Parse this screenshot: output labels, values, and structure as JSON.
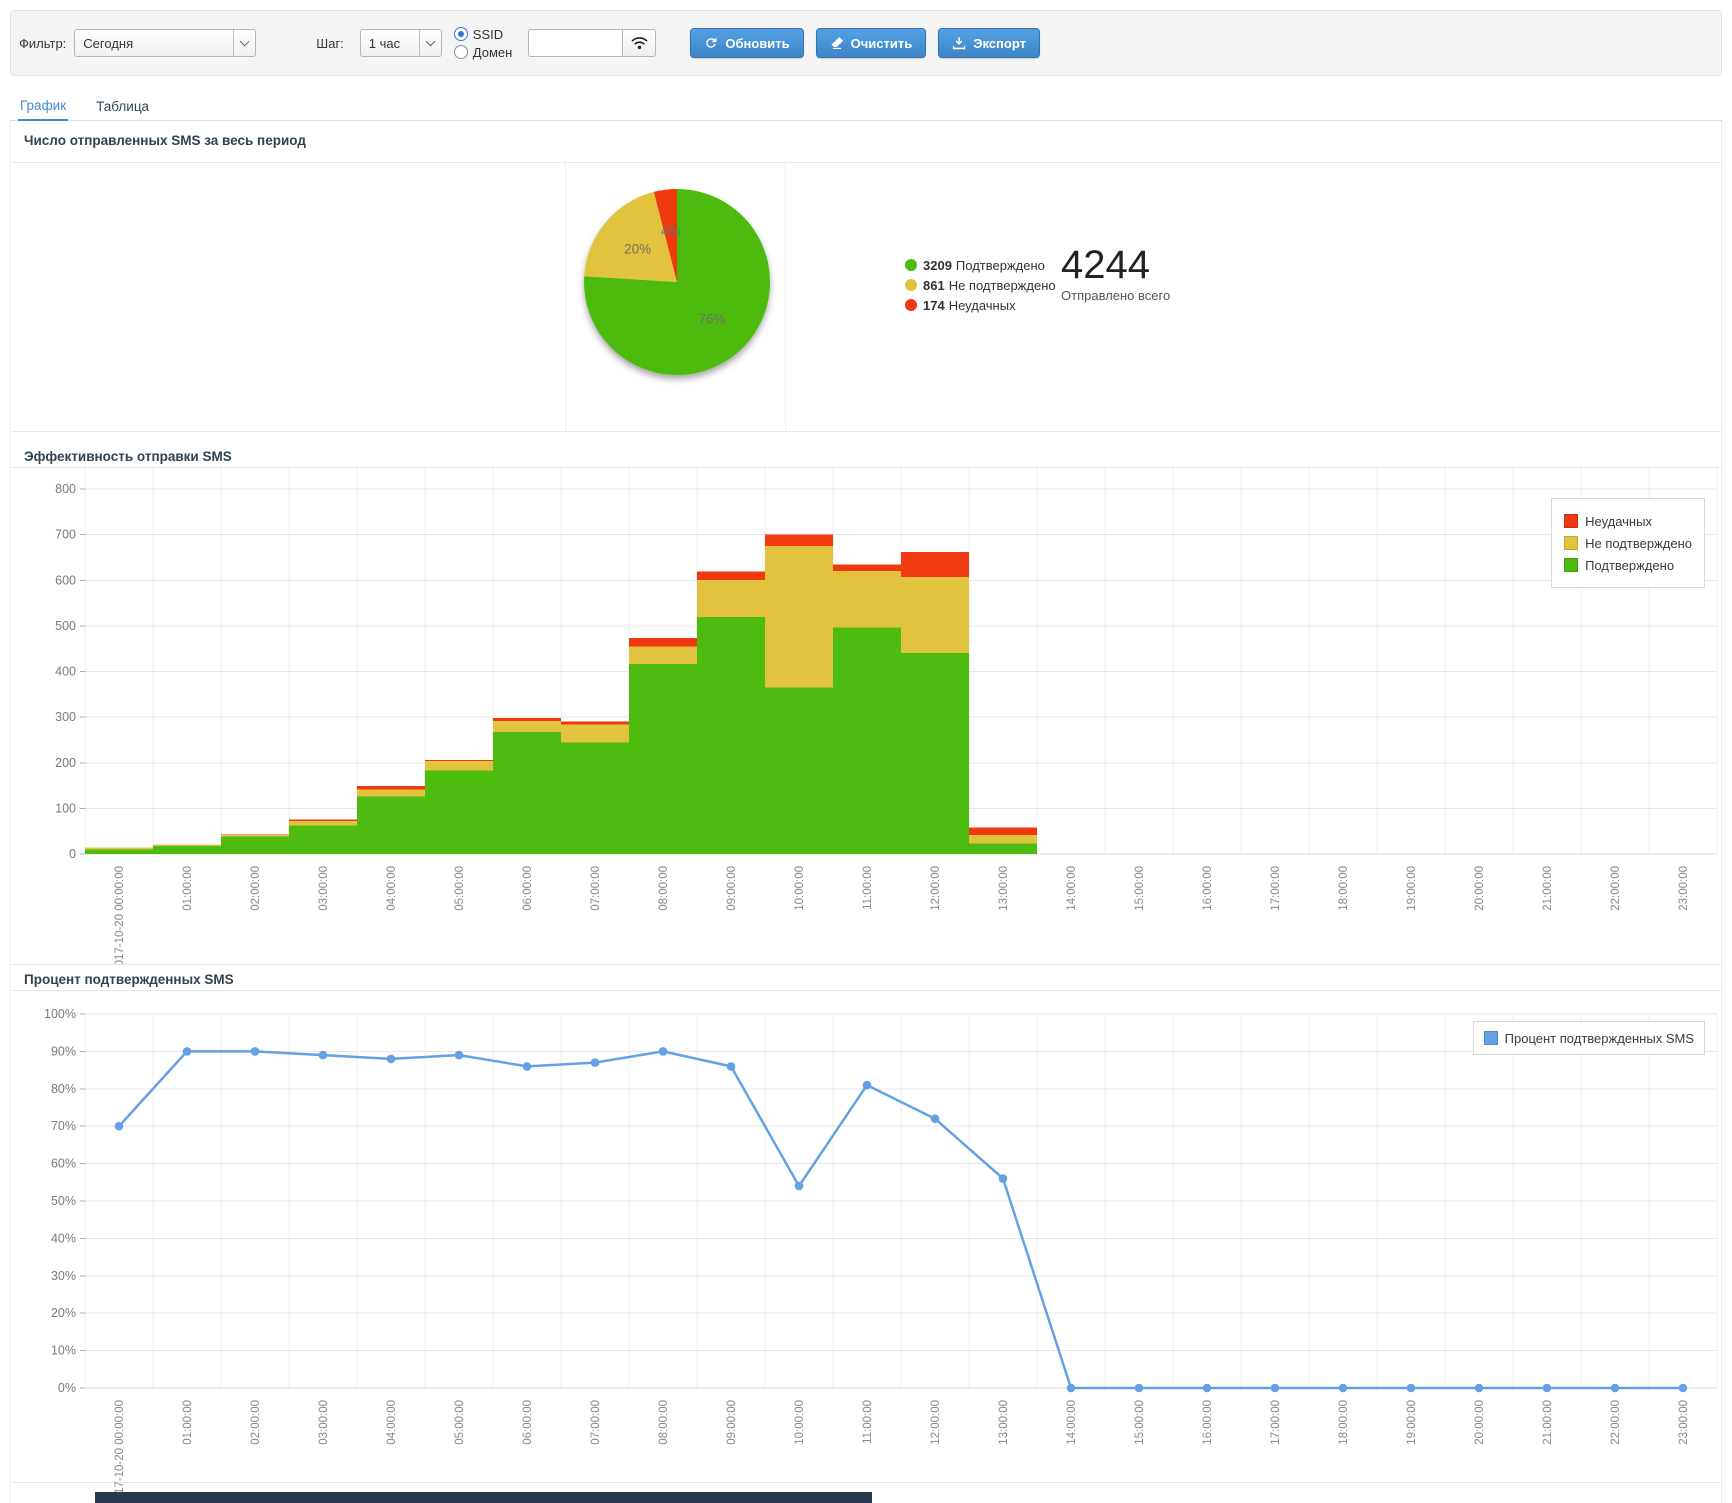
{
  "toolbar": {
    "filter_label": "Фильтр:",
    "filter_value": "Сегодня",
    "step_label": "Шаг:",
    "step_value": "1 час",
    "radio_ssid": "SSID",
    "radio_domain": "Домен",
    "search_value": "",
    "refresh_label": "Обновить",
    "clear_label": "Очистить",
    "export_label": "Экспорт"
  },
  "tabs": [
    {
      "label": "График",
      "active": true
    },
    {
      "label": "Таблица",
      "active": false
    }
  ],
  "sections": {
    "pie_title": "Число отправленных SMS за весь период",
    "bar_title": "Эффективность отправки SMS",
    "line_title": "Процент подтвержденных SMS"
  },
  "pie_summary": {
    "total_value": "4244",
    "total_label": "Отправлено всего",
    "legend": [
      {
        "value": "3209",
        "label": "Подтверждено",
        "color": "#4dbb10"
      },
      {
        "value": "861",
        "label": "Не подтверждено",
        "color": "#e2c33d"
      },
      {
        "value": "174",
        "label": "Неудачных",
        "color": "#ee3911"
      }
    ]
  },
  "bar_legend": [
    {
      "label": "Неудачных",
      "color": "#ee3911"
    },
    {
      "label": "Не подтверждено",
      "color": "#e2c33d"
    },
    {
      "label": "Подтверждено",
      "color": "#4dbb10"
    }
  ],
  "line_legend": {
    "label": "Процент подтвержденных SMS",
    "color": "#64a1e4"
  },
  "ui_colors": {
    "accent": "#428bca",
    "button_border": "#3474ad",
    "grid": "#e7e7e7",
    "axis_text": "#7a7a7a"
  },
  "chart_data": [
    {
      "type": "pie",
      "title": "Число отправленных SMS за весь период",
      "slices": [
        {
          "label": "Подтверждено",
          "value": 3209,
          "pct": 76,
          "color": "#4dbb10"
        },
        {
          "label": "Не подтверждено",
          "value": 861,
          "pct": 20,
          "color": "#e2c33d"
        },
        {
          "label": "Неудачных",
          "value": 174,
          "pct": 4,
          "color": "#ee3911"
        }
      ],
      "total": 4244,
      "slice_labels": [
        "76%",
        "20%",
        "4%"
      ]
    },
    {
      "type": "bar",
      "stacked": true,
      "title": "Эффективность отправки SMS",
      "categories": [
        "2017-10-20 00:00:00",
        "01:00:00",
        "02:00:00",
        "03:00:00",
        "04:00:00",
        "05:00:00",
        "06:00:00",
        "07:00:00",
        "08:00:00",
        "09:00:00",
        "10:00:00",
        "11:00:00",
        "12:00:00",
        "13:00:00",
        "14:00:00",
        "15:00:00",
        "16:00:00",
        "17:00:00",
        "18:00:00",
        "19:00:00",
        "20:00:00",
        "21:00:00",
        "22:00:00",
        "23:00:00"
      ],
      "series": [
        {
          "name": "Подтверждено",
          "color": "#4dbb10",
          "values": [
            10,
            18,
            38,
            62,
            126,
            183,
            267,
            244,
            416,
            520,
            365,
            496,
            441,
            23,
            0,
            0,
            0,
            0,
            0,
            0,
            0,
            0,
            0,
            0
          ]
        },
        {
          "name": "Не подтверждено",
          "color": "#e2c33d",
          "values": [
            4,
            3,
            4,
            10,
            15,
            21,
            25,
            40,
            39,
            81,
            310,
            124,
            166,
            19,
            0,
            0,
            0,
            0,
            0,
            0,
            0,
            0,
            0,
            0
          ]
        },
        {
          "name": "Неудачных",
          "color": "#ee3911",
          "values": [
            0,
            0,
            1,
            4,
            8,
            2,
            6,
            6,
            18,
            18,
            25,
            15,
            55,
            16,
            0,
            0,
            0,
            0,
            0,
            0,
            0,
            0,
            0,
            0
          ]
        }
      ],
      "legend_order": [
        "Неудачных",
        "Не подтверждено",
        "Подтверждено"
      ],
      "ylim": [
        0,
        800
      ],
      "ytick": 100,
      "grid": true,
      "legend_position": "top-right"
    },
    {
      "type": "line",
      "title": "Процент подтвержденных SMS",
      "legend": "Процент подтвержденных SMS",
      "color": "#64a1e4",
      "categories": [
        "2017-10-20 00:00:00",
        "01:00:00",
        "02:00:00",
        "03:00:00",
        "04:00:00",
        "05:00:00",
        "06:00:00",
        "07:00:00",
        "08:00:00",
        "09:00:00",
        "10:00:00",
        "11:00:00",
        "12:00:00",
        "13:00:00",
        "14:00:00",
        "15:00:00",
        "16:00:00",
        "17:00:00",
        "18:00:00",
        "19:00:00",
        "20:00:00",
        "21:00:00",
        "22:00:00",
        "23:00:00"
      ],
      "values": [
        70,
        90,
        90,
        89,
        88,
        89,
        86,
        87,
        90,
        86,
        54,
        81,
        72,
        56,
        0,
        0,
        0,
        0,
        0,
        0,
        0,
        0,
        0,
        0
      ],
      "ylim": [
        0,
        100
      ],
      "ytick": 10,
      "unit": "%",
      "grid": true,
      "legend_position": "top-right"
    }
  ]
}
